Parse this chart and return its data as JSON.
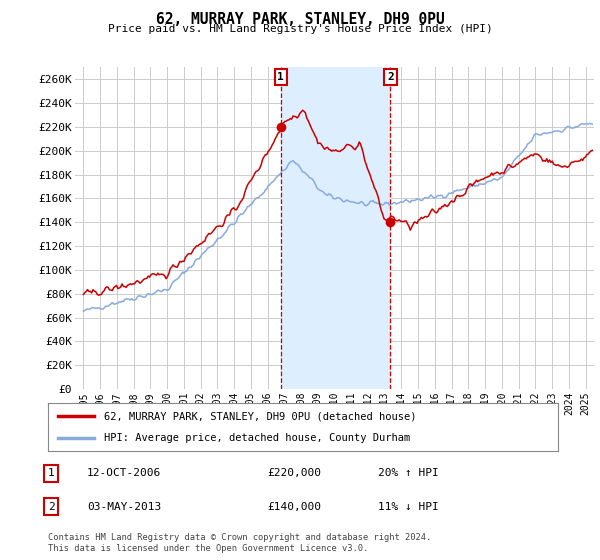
{
  "title": "62, MURRAY PARK, STANLEY, DH9 0PU",
  "subtitle": "Price paid vs. HM Land Registry's House Price Index (HPI)",
  "ylabel_ticks": [
    "£0",
    "£20K",
    "£40K",
    "£60K",
    "£80K",
    "£100K",
    "£120K",
    "£140K",
    "£160K",
    "£180K",
    "£200K",
    "£220K",
    "£240K",
    "£260K"
  ],
  "ytick_values": [
    0,
    20000,
    40000,
    60000,
    80000,
    100000,
    120000,
    140000,
    160000,
    180000,
    200000,
    220000,
    240000,
    260000
  ],
  "ylim": [
    0,
    270000
  ],
  "xlim_start": 1994.5,
  "xlim_end": 2025.5,
  "background_color": "#ffffff",
  "shaded_color": "#ddeeff",
  "grid_color": "#cccccc",
  "red_line_color": "#cc0000",
  "blue_line_color": "#88aadd",
  "marker1_x": 2006.79,
  "marker1_y": 220000,
  "marker2_x": 2013.34,
  "marker2_y": 140000,
  "vline1_x": 2006.79,
  "vline2_x": 2013.34,
  "legend_label_red": "62, MURRAY PARK, STANLEY, DH9 0PU (detached house)",
  "legend_label_blue": "HPI: Average price, detached house, County Durham",
  "table_row1": [
    "1",
    "12-OCT-2006",
    "£220,000",
    "20% ↑ HPI"
  ],
  "table_row2": [
    "2",
    "03-MAY-2013",
    "£140,000",
    "11% ↓ HPI"
  ],
  "footer": "Contains HM Land Registry data © Crown copyright and database right 2024.\nThis data is licensed under the Open Government Licence v3.0.",
  "xtick_years": [
    1995,
    1996,
    1997,
    1998,
    1999,
    2000,
    2001,
    2002,
    2003,
    2004,
    2005,
    2006,
    2007,
    2008,
    2009,
    2010,
    2011,
    2012,
    2013,
    2014,
    2015,
    2016,
    2017,
    2018,
    2019,
    2020,
    2021,
    2022,
    2023,
    2024,
    2025
  ]
}
